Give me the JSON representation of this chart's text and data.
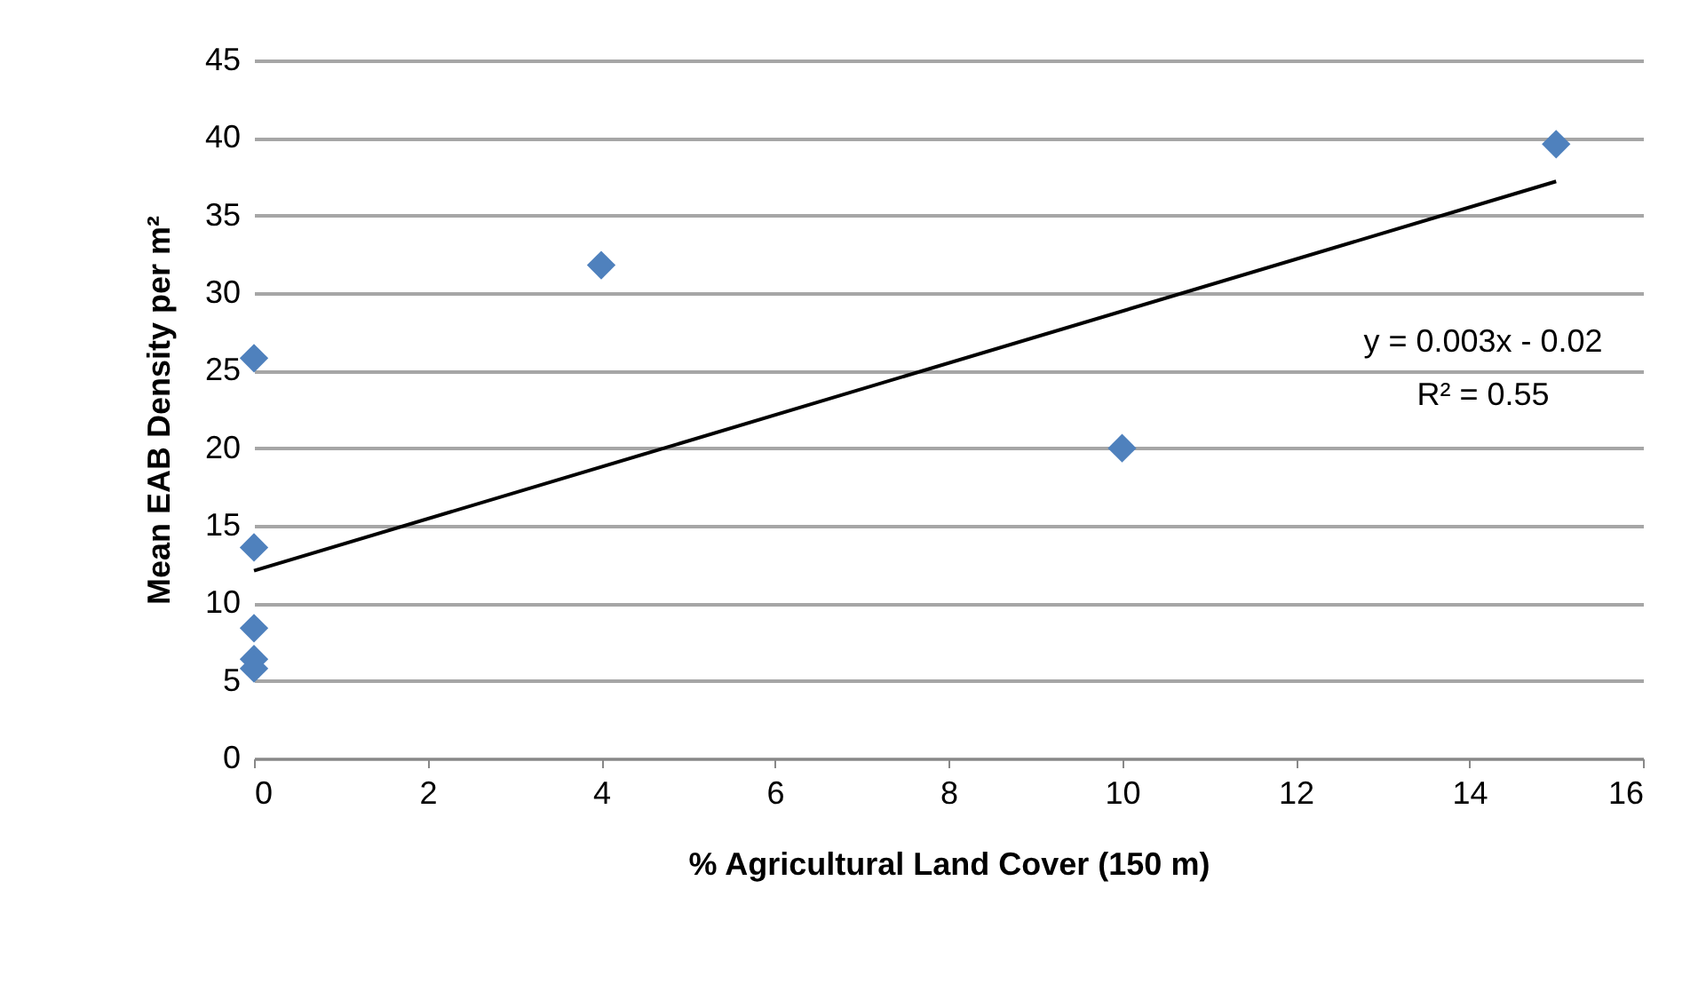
{
  "chart_data": {
    "type": "scatter",
    "xlabel": "% Agricultural Land Cover (150 m)",
    "ylabel": "Mean EAB Density per m²",
    "series": [
      {
        "color": "#4f81bd",
        "marker": "diamond",
        "x": [
          0,
          0,
          0,
          0,
          0,
          4,
          10,
          15
        ],
        "values": [
          25.8,
          13.6,
          8.4,
          6.4,
          5.8,
          31.8,
          20.0,
          39.6
        ]
      },
      {
        "type": "line",
        "color": "#000000",
        "x": [
          0,
          15
        ],
        "values": [
          12.1,
          37.2
        ]
      }
    ],
    "xlim": [
      0,
      16
    ],
    "xticks": [
      0,
      2,
      4,
      6,
      8,
      10,
      12,
      14,
      16
    ],
    "ylim": [
      0,
      45
    ],
    "yticks": [
      0,
      5,
      10,
      15,
      20,
      25,
      30,
      35,
      40,
      45
    ],
    "grid": "y",
    "annotations": [
      "y = 0.003x - 0.02",
      "R² = 0.55"
    ]
  }
}
